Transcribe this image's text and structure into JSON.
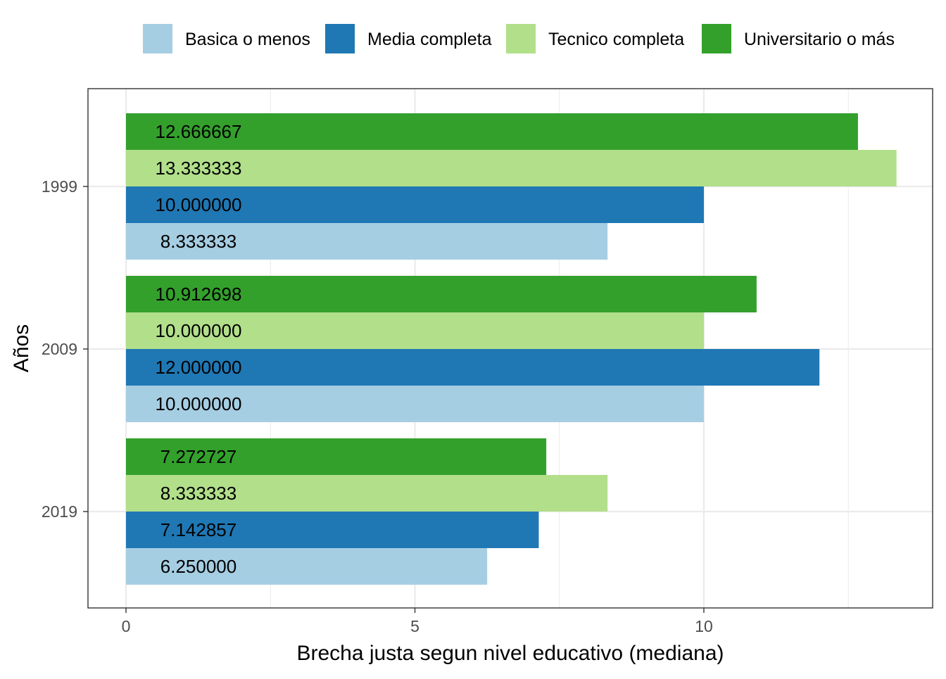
{
  "chart_data": {
    "type": "bar",
    "orientation": "horizontal",
    "title": "",
    "xlabel": "Brecha justa segun nivel educativo (mediana)",
    "ylabel": "Años",
    "categories": [
      "1999",
      "2009",
      "2019"
    ],
    "xlim": [
      -0.65,
      14.0
    ],
    "x_ticks": [
      "0",
      "5",
      "10"
    ],
    "x_tick_values": [
      0,
      5,
      10
    ],
    "grid": true,
    "legend_position": "top",
    "series": [
      {
        "name": "Basica o menos",
        "color": "#a6cee3",
        "values": [
          8.333333,
          10.0,
          6.25
        ],
        "labels": [
          "8.333333",
          "10.000000",
          "6.250000"
        ]
      },
      {
        "name": "Media completa",
        "color": "#1f78b4",
        "values": [
          10.0,
          12.0,
          7.142857
        ],
        "labels": [
          "10.000000",
          "12.000000",
          "7.142857"
        ]
      },
      {
        "name": "Tecnico completa",
        "color": "#b2df8a",
        "values": [
          13.333333,
          10.0,
          8.333333
        ],
        "labels": [
          "13.333333",
          "10.000000",
          "8.333333"
        ]
      },
      {
        "name": "Universitario o más",
        "color": "#33a02c",
        "values": [
          12.666667,
          10.912698,
          7.272727
        ],
        "labels": [
          "12.666667",
          "10.912698",
          "7.272727"
        ]
      }
    ]
  }
}
